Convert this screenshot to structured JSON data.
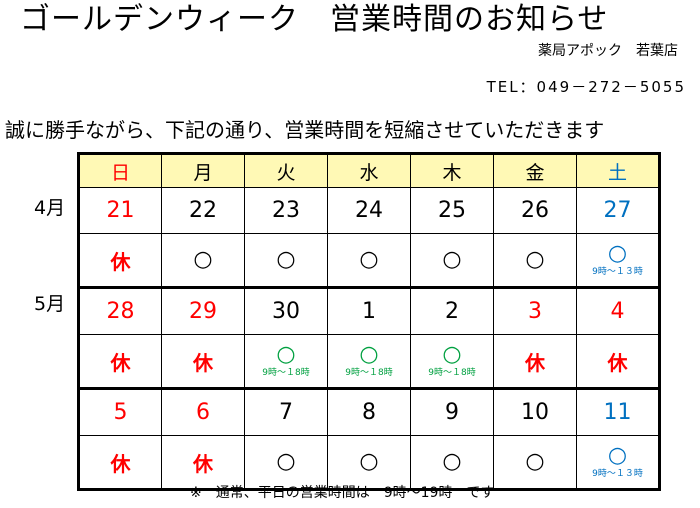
{
  "title": "ゴールデンウィーク　営業時間のお知らせ",
  "store": "薬局アポック　若葉店",
  "tel": "TEL：049－272－5055",
  "notice": "誠に勝手ながら、下記の通り、営業時間を短縮させていただきます",
  "weekdays": [
    "日",
    "月",
    "火",
    "水",
    "木",
    "金",
    "土"
  ],
  "month_labels": [
    "4月",
    "5月"
  ],
  "weeks": [
    {
      "dates": [
        "21",
        "22",
        "23",
        "24",
        "25",
        "26",
        "27"
      ],
      "status": [
        {
          "mark": "休",
          "note": ""
        },
        {
          "mark": "○",
          "note": ""
        },
        {
          "mark": "○",
          "note": ""
        },
        {
          "mark": "○",
          "note": ""
        },
        {
          "mark": "○",
          "note": ""
        },
        {
          "mark": "○",
          "note": ""
        },
        {
          "mark": "○",
          "note": "9時～１３時"
        }
      ]
    },
    {
      "dates": [
        "28",
        "29",
        "30",
        "1",
        "2",
        "3",
        "4"
      ],
      "status": [
        {
          "mark": "休",
          "note": ""
        },
        {
          "mark": "休",
          "note": ""
        },
        {
          "mark": "○",
          "note": "9時～１8時"
        },
        {
          "mark": "○",
          "note": "9時～１8時"
        },
        {
          "mark": "○",
          "note": "9時～１8時"
        },
        {
          "mark": "休",
          "note": ""
        },
        {
          "mark": "休",
          "note": ""
        }
      ]
    },
    {
      "dates": [
        "5",
        "6",
        "7",
        "8",
        "9",
        "10",
        "11"
      ],
      "status": [
        {
          "mark": "休",
          "note": ""
        },
        {
          "mark": "休",
          "note": ""
        },
        {
          "mark": "○",
          "note": ""
        },
        {
          "mark": "○",
          "note": ""
        },
        {
          "mark": "○",
          "note": ""
        },
        {
          "mark": "○",
          "note": ""
        },
        {
          "mark": "○",
          "note": "9時～１３時"
        }
      ]
    }
  ],
  "footnote": "※　通常、平日の営業時間は　9時～19時　です",
  "colors": {
    "holiday": "#ff0000",
    "saturday": "#0070c0",
    "short_hours": "#00a040",
    "header_bg": "#fff9b5"
  }
}
